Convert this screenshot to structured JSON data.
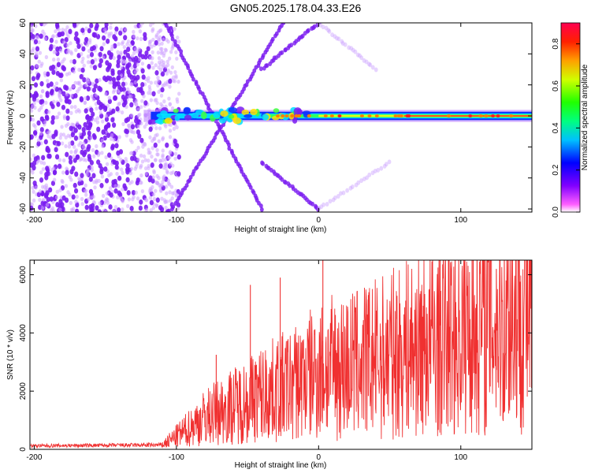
{
  "title": "GN05.2025.178.04.33.E26",
  "chart_data": [
    {
      "type": "heatmap",
      "xlabel": "Height of straight line (km)",
      "ylabel": "Frequency (Hz)",
      "xlim": [
        -203,
        150
      ],
      "ylim": [
        -62,
        60
      ],
      "xticks": [
        "-200",
        "-100",
        "0",
        "100"
      ],
      "yticks": [
        "60",
        "40",
        "20",
        "0",
        "-20",
        "-40",
        "-60"
      ],
      "colorbar": {
        "label": "Normalized spectral amplitude",
        "range": [
          0,
          0.9
        ],
        "ticks": [
          "0.8",
          "0.6",
          "0.4",
          "0.2",
          "0.0"
        ]
      },
      "features": {
        "noise_region_x": [
          -203,
          -110
        ],
        "carrier_band_x": [
          -123,
          150
        ],
        "carrier_band_freq_halfwidth": 3,
        "chirp_crossing_x": -65,
        "chirp_vertex_x": 0
      },
      "grid": false
    },
    {
      "type": "line",
      "xlabel": "Height of straight line (km)",
      "ylabel": "SNR (10 * v/v)",
      "xlim": [
        -203,
        150
      ],
      "ylim": [
        0,
        6500
      ],
      "xticks": [
        "-200",
        "-100",
        "0",
        "100"
      ],
      "yticks": [
        "6000",
        "4000",
        "2000",
        "0"
      ],
      "series_color": "#f03030",
      "envelope": {
        "x": [
          -203,
          -110,
          -95,
          -80,
          -60,
          -40,
          -20,
          0,
          20,
          40,
          60,
          80,
          100,
          120,
          150
        ],
        "y": [
          120,
          150,
          600,
          1100,
          1500,
          1900,
          2200,
          2700,
          2900,
          3100,
          3400,
          3700,
          4000,
          4500,
          4800
        ]
      },
      "spikes": [
        {
          "x": -72,
          "y": 3250
        },
        {
          "x": -48,
          "y": 5650
        },
        {
          "x": -27,
          "y": 5900
        },
        {
          "x": 3,
          "y": 6500
        },
        {
          "x": 35,
          "y": 5300
        },
        {
          "x": 125,
          "y": 6200
        }
      ],
      "grid": false
    }
  ]
}
